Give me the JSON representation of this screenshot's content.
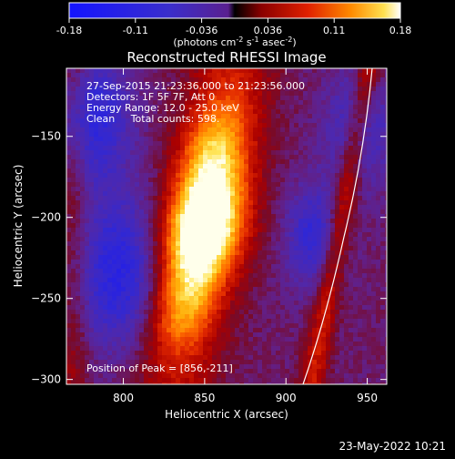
{
  "colorbar": {
    "tick_labels": [
      "-0.18",
      "-0.11",
      "-0.036",
      "0.036",
      "0.11",
      "0.18"
    ],
    "range": [
      -0.18,
      0.18
    ],
    "units_main": "(photons cm",
    "units_exp1": "-2",
    "units_mid": " s",
    "units_exp2": "-1",
    "units_mid2": " asec",
    "units_exp3": "-2",
    "units_end": ")"
  },
  "chart_data": {
    "type": "heatmap",
    "title": "Reconstructed RHESSI Image",
    "xlabel": "Heliocentric X (arcsec)",
    "ylabel": "Heliocentric Y (arcsec)",
    "xlim": [
      765,
      962
    ],
    "ylim": [
      -303,
      -108
    ],
    "x_ticks": [
      800,
      850,
      900,
      950
    ],
    "y_ticks": [
      -150,
      -200,
      -250,
      -300
    ],
    "x_tick_labels": [
      "800",
      "850",
      "900",
      "950"
    ],
    "y_tick_labels": [
      "−150",
      "−200",
      "−250",
      "−300"
    ],
    "peak": [
      856,
      -211
    ],
    "colormap": "rhessi-blue-red-yellow",
    "info_lines": [
      "27-Sep-2015 21:23:36.000 to 21:23:56.000",
      "Detectors: 1F 5F 7F, Att 0",
      "Energy Range: 12.0 - 25.0 keV",
      "Clean     Total counts: 598."
    ],
    "peak_label": "Position of Peak = [856,-211]"
  },
  "footer": {
    "date": "23-May-2022 10:21"
  }
}
